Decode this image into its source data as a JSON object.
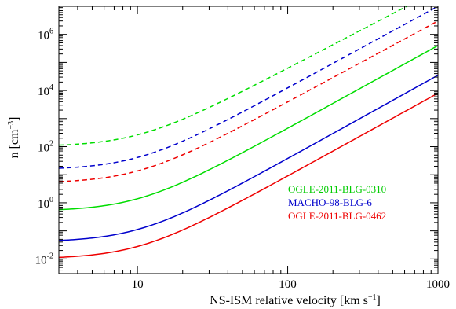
{
  "chart_data": {
    "type": "line",
    "xscale": "log",
    "yscale": "log",
    "xlim": [
      3,
      1000
    ],
    "ylim": [
      0.003,
      10000000
    ],
    "xlabel": {
      "main": "NS-ISM relative velocity [km s",
      "sup": "−1",
      "tail": "]"
    },
    "ylabel": {
      "main": "n [cm",
      "sup": "−3",
      "tail": "]"
    },
    "xticks": [
      {
        "value": 10,
        "label": "10"
      },
      {
        "value": 100,
        "label": "100"
      },
      {
        "value": 1000,
        "label": "1000"
      }
    ],
    "yticks": [
      {
        "value": 0.01,
        "base": "10",
        "exp": "-2"
      },
      {
        "value": 1,
        "base": "10",
        "exp": "0"
      },
      {
        "value": 100,
        "base": "10",
        "exp": "2"
      },
      {
        "value": 10000,
        "base": "10",
        "exp": "4"
      },
      {
        "value": 1000000,
        "base": "10",
        "exp": "6"
      }
    ],
    "grid": false,
    "legend_position": "center-right",
    "series": [
      {
        "name": "OGLE-2011-BLG-0310",
        "color": "#00dd00",
        "curves": [
          {
            "style": "solid",
            "n_low": 0.5,
            "v0": 10,
            "v_end": 1000,
            "y_end": 400000
          },
          {
            "style": "dashed",
            "n_low": 100,
            "v0": 10,
            "v_end": 620,
            "y_end": 10000000
          }
        ]
      },
      {
        "name": "MACHO-98-BLG-6",
        "color": "#0000cc",
        "curves": [
          {
            "style": "solid",
            "n_low": 0.04,
            "v0": 10,
            "v_end": 1000,
            "y_end": 35000
          },
          {
            "style": "dashed",
            "n_low": 15,
            "v0": 10,
            "v_end": 1000,
            "y_end": 10000000
          }
        ]
      },
      {
        "name": "OGLE-2011-BLG-0462",
        "color": "#ee0000",
        "curves": [
          {
            "style": "solid",
            "n_low": 0.01,
            "v0": 10,
            "v_end": 1000,
            "y_end": 8000
          },
          {
            "style": "dashed",
            "n_low": 5,
            "v0": 10,
            "v_end": 1000,
            "y_end": 3000000
          }
        ]
      }
    ]
  }
}
